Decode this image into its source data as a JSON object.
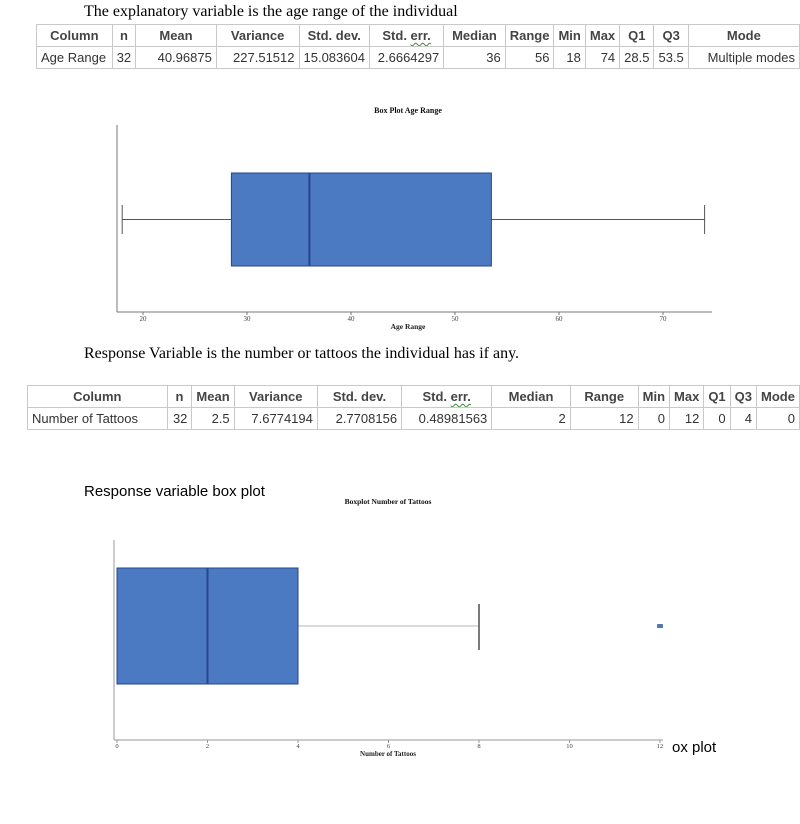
{
  "page": {
    "intro_text": "The explanatory variable is the age range of the individual",
    "response_text": "Response Variable is the number or tattoos the individual has if any.",
    "response_plot_label": "Response variable box plot",
    "cutoff_text": "ox plot"
  },
  "tables": [
    {
      "name": "age-range-summary",
      "headers": [
        "Column",
        "n",
        "Mean",
        "Variance",
        "Std. dev.",
        "Std. err.",
        "Median",
        "Range",
        "Min",
        "Max",
        "Q1",
        "Q3",
        "Mode"
      ],
      "wavy_word_header": "Std. err.",
      "rows": [
        [
          "Age Range",
          "32",
          "40.96875",
          "227.51512",
          "15.083604",
          "2.6664297",
          "36",
          "56",
          "18",
          "74",
          "28.5",
          "53.5",
          "Multiple modes"
        ]
      ]
    },
    {
      "name": "tattoos-summary",
      "headers": [
        "Column",
        "n",
        "Mean",
        "Variance",
        "Std. dev.",
        "Std. err.",
        "Median",
        "Range",
        "Min",
        "Max",
        "Q1",
        "Q3",
        "Mode"
      ],
      "wavy_word_header": "Std. err.",
      "rows": [
        [
          "Number of Tattoos",
          "32",
          "2.5",
          "7.6774194",
          "2.7708156",
          "0.48981563",
          "2",
          "12",
          "0",
          "12",
          "0",
          "4",
          "0"
        ]
      ]
    }
  ],
  "chart_data": [
    {
      "type": "boxplot",
      "title": "Box Plot Age Range",
      "xlabel": "Age Range",
      "x_ticks": [
        20,
        30,
        40,
        50,
        60,
        70
      ],
      "xlim": [
        17.5,
        75
      ],
      "stats": {
        "whisker_low": 18,
        "q1": 28.5,
        "median": 36,
        "q3": 53.5,
        "whisker_high": 74
      },
      "outliers": [],
      "box_color": "#4B7AC2",
      "line_color": "#24478F",
      "legend": "none",
      "grid": false
    },
    {
      "type": "boxplot",
      "title": "Boxplot Number of Tattoos",
      "xlabel": "Number of Tattoos",
      "x_ticks": [
        0,
        2,
        4,
        6,
        8,
        10,
        12
      ],
      "xlim": [
        0,
        12.3
      ],
      "stats": {
        "whisker_low": 0,
        "q1": 0,
        "median": 2,
        "q3": 4,
        "whisker_high": 8
      },
      "outliers": [
        12
      ],
      "box_color": "#4B7AC2",
      "line_color": "#24478F",
      "legend": "none",
      "grid": false
    }
  ]
}
